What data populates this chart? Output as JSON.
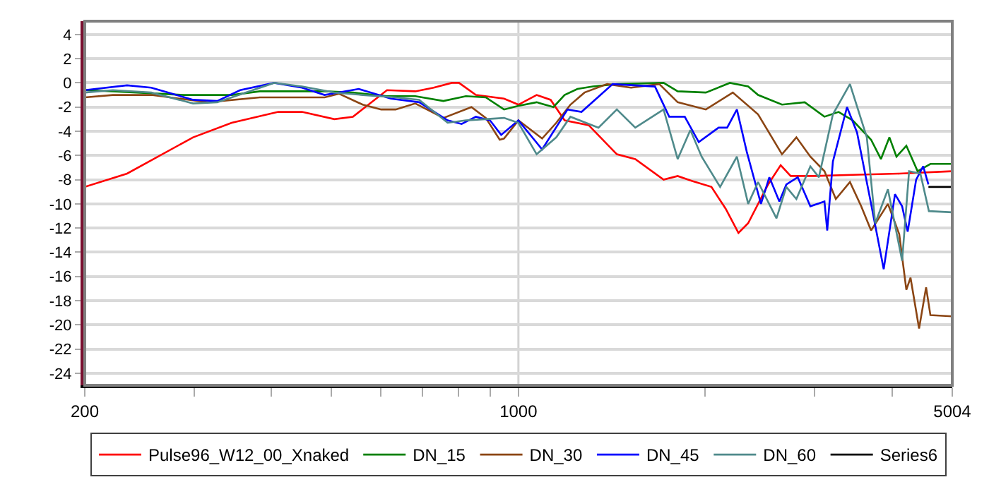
{
  "chart_data": {
    "type": "line",
    "log": "x",
    "xlim": [
      200,
      5004
    ],
    "ylim": [
      -25,
      5.1
    ],
    "xticks": [
      200,
      {
        "value": 300,
        "label": null
      },
      {
        "value": 400,
        "label": null
      },
      {
        "value": 500,
        "label": null
      },
      {
        "value": 600,
        "label": null
      },
      {
        "value": 700,
        "label": null
      },
      {
        "value": 800,
        "label": null
      },
      {
        "value": 900,
        "label": null
      },
      1000,
      {
        "value": 2000,
        "label": null
      },
      {
        "value": 3000,
        "label": null
      },
      {
        "value": 4000,
        "label": null
      },
      5004
    ],
    "yticks": [
      -24,
      -22,
      -20,
      -18,
      -16,
      -14,
      -12,
      -10,
      -8,
      -6,
      -4,
      -2,
      0,
      2,
      4
    ],
    "grid": "y",
    "legend": "bottom",
    "marker": "none",
    "line_style": "solid",
    "ref_lines": [
      {
        "axis": "x",
        "value": 1000,
        "color": "#d3d3d3"
      }
    ],
    "series": [
      {
        "name": "Pulse96_W12_00_Xnaked",
        "color": "#ff0000",
        "x": [
          200,
          234,
          299,
          345,
          410,
          448,
          505,
          541,
          614,
          682,
          730,
          781,
          802,
          854,
          948,
          1000,
          1070,
          1127,
          1187,
          1298,
          1441,
          1543,
          1714,
          1806,
          1902,
          2047,
          2158,
          2263,
          2346,
          2526,
          2647,
          2747,
          3003,
          3458,
          4110,
          5004
        ],
        "values": [
          -8.6,
          -7.5,
          -4.5,
          -3.3,
          -2.4,
          -2.4,
          -3,
          -2.8,
          -0.6,
          -0.7,
          -0.4,
          0,
          0,
          -1,
          -1.3,
          -1.8,
          -1,
          -1.4,
          -3.1,
          -3.5,
          -5.9,
          -6.3,
          -8,
          -7.7,
          -8.1,
          -8.6,
          -10.4,
          -12.4,
          -11.6,
          -8.4,
          -6.8,
          -7.7,
          -7.7,
          -7.6,
          -7.5,
          -7.3
        ]
      },
      {
        "name": "DN_15",
        "color": "#008000",
        "x": [
          200,
          222,
          289,
          345,
          383,
          487,
          541,
          614,
          682,
          757,
          823,
          886,
          948,
          1000,
          1070,
          1139,
          1187,
          1245,
          1318,
          1441,
          1714,
          1806,
          2005,
          2192,
          2346,
          2434,
          2660,
          2894,
          3114,
          3282,
          3458,
          3702,
          3840,
          3963,
          4068,
          4220,
          4400,
          4614,
          5004
        ],
        "values": [
          -0.6,
          -0.7,
          -1,
          -1,
          -0.7,
          -0.7,
          -0.8,
          -1.1,
          -1.1,
          -1.5,
          -1.1,
          -1.2,
          -2.2,
          -1.9,
          -1.6,
          -2,
          -1,
          -0.5,
          -0.3,
          -0.1,
          0,
          -0.7,
          -0.8,
          0,
          -0.3,
          -1,
          -1.8,
          -1.6,
          -2.8,
          -2.4,
          -3.1,
          -4.7,
          -6.3,
          -4.5,
          -6.1,
          -5.2,
          -7.3,
          -6.7,
          -6.7
        ]
      },
      {
        "name": "DN_30",
        "color": "#8b4513",
        "x": [
          200,
          222,
          256,
          316,
          383,
          487,
          514,
          561,
          601,
          634,
          682,
          757,
          840,
          886,
          933,
          948,
          1000,
          1092,
          1151,
          1213,
          1278,
          1390,
          1519,
          1687,
          1806,
          2005,
          2216,
          2434,
          2660,
          2806,
          2955,
          3114,
          3248,
          3423,
          3569,
          3702,
          3941,
          4110,
          4220,
          4286,
          4424,
          4541,
          4614,
          5004
        ],
        "values": [
          -1.2,
          -1,
          -1,
          -1.6,
          -1.2,
          -1.2,
          -0.9,
          -1.8,
          -2.2,
          -2.2,
          -1.7,
          -2.9,
          -2,
          -2.9,
          -4.7,
          -4.6,
          -3.1,
          -4.6,
          -3.3,
          -1.8,
          -0.8,
          -0.1,
          -0.4,
          -0.1,
          -1.6,
          -2.2,
          -0.8,
          -2.6,
          -5.9,
          -4.5,
          -6.1,
          -7.3,
          -9.6,
          -8.2,
          -10.2,
          -12.2,
          -10,
          -12.5,
          -17.1,
          -16.1,
          -20.3,
          -16.9,
          -19.2,
          -19.3
        ]
      },
      {
        "name": "DN_45",
        "color": "#0000ff",
        "x": [
          200,
          234,
          256,
          299,
          327,
          356,
          404,
          448,
          487,
          553,
          623,
          692,
          769,
          810,
          854,
          900,
          938,
          1000,
          1092,
          1200,
          1264,
          1419,
          1660,
          1750,
          1854,
          1953,
          2102,
          2170,
          2250,
          2334,
          2460,
          2538,
          2634,
          2703,
          2820,
          2955,
          3114,
          3146,
          3213,
          3386,
          3514,
          3702,
          3880,
          4046,
          4154,
          4241,
          4376,
          4492,
          4580
        ],
        "values": [
          -0.6,
          -0.2,
          -0.4,
          -1.4,
          -1.5,
          -0.6,
          0,
          -0.4,
          -1,
          -0.5,
          -1.3,
          -1.6,
          -3.1,
          -3.4,
          -2.8,
          -3.1,
          -4.3,
          -3.1,
          -5.5,
          -2.2,
          -2.4,
          -0.1,
          -0.3,
          -2.8,
          -2.8,
          -4.9,
          -3.7,
          -3.7,
          -2.2,
          -5.7,
          -10,
          -7.8,
          -9.8,
          -8.4,
          -7.8,
          -10.2,
          -9.8,
          -12.2,
          -6.5,
          -2,
          -4.1,
          -10,
          -15.4,
          -9.2,
          -10.2,
          -12.3,
          -8,
          -6.9,
          -8.4
        ]
      },
      {
        "name": "DN_60",
        "color": "#4f8a8b",
        "x": [
          200,
          222,
          256,
          299,
          327,
          404,
          448,
          505,
          561,
          634,
          692,
          769,
          823,
          948,
          1000,
          1070,
          1151,
          1213,
          1346,
          1441,
          1543,
          1714,
          1806,
          1893,
          1974,
          2114,
          2250,
          2346,
          2434,
          2606,
          2703,
          2806,
          2955,
          3050,
          3213,
          3423,
          3644,
          3760,
          3941,
          4154,
          4263,
          4446,
          4588,
          5004
        ],
        "values": [
          -0.8,
          -0.6,
          -0.8,
          -1.7,
          -1.6,
          0,
          -0.3,
          -0.8,
          -1,
          -1.2,
          -1.4,
          -3.3,
          -3.1,
          -2.9,
          -3.3,
          -5.9,
          -4.5,
          -2.8,
          -3.7,
          -2.2,
          -3.7,
          -2.2,
          -6.3,
          -3.9,
          -6.1,
          -8.6,
          -6.1,
          -10,
          -8.2,
          -11.2,
          -8.6,
          -9.6,
          -6.9,
          -7.8,
          -2.6,
          -0.1,
          -4.5,
          -11.6,
          -8.8,
          -14.7,
          -7.3,
          -7.5,
          -10.6,
          -10.7
        ]
      },
      {
        "name": "Series6",
        "color": "#000000",
        "x": [
          4580,
          5004
        ],
        "values": [
          -8.6,
          -8.6
        ]
      }
    ]
  }
}
